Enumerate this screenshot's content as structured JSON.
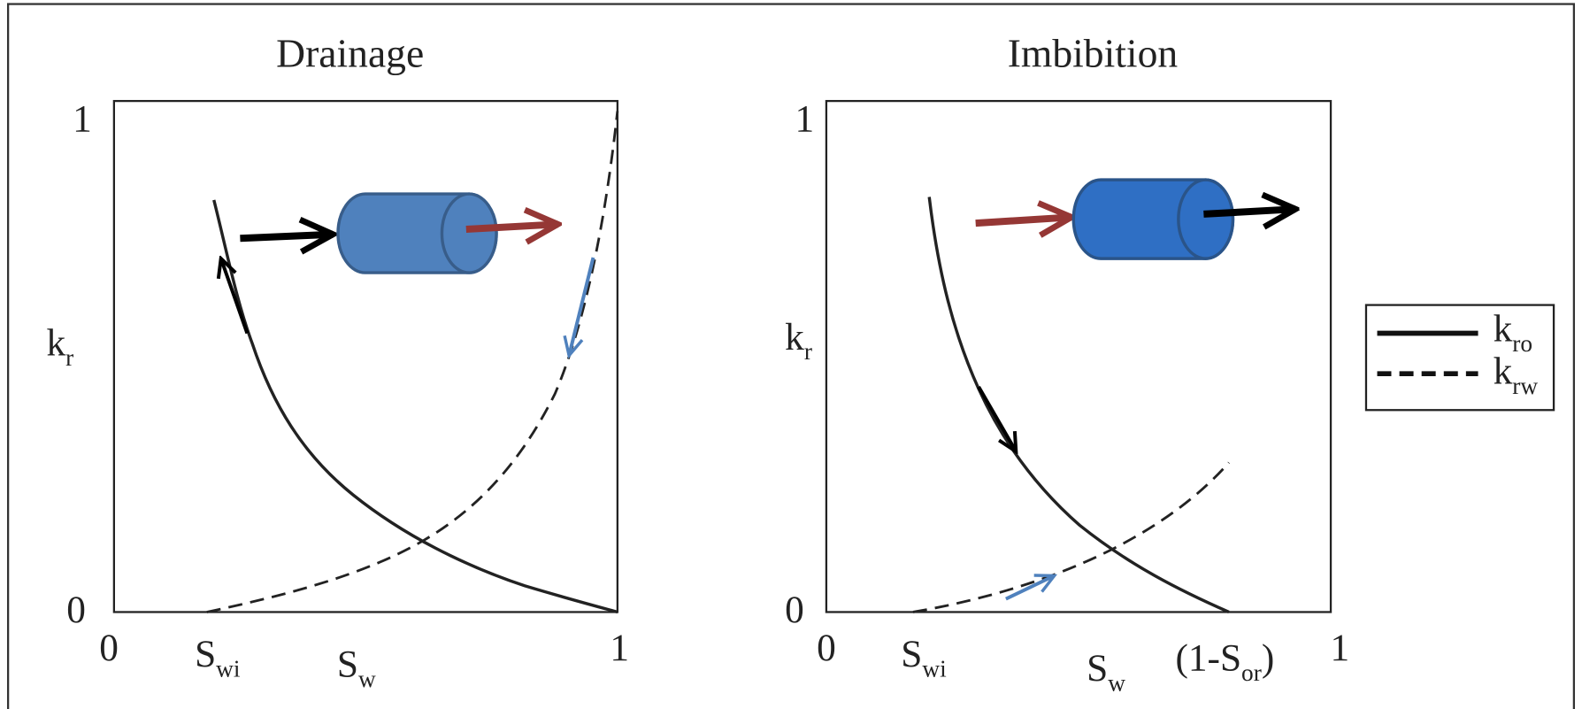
{
  "panels": [
    {
      "title": "Drainage",
      "y_label": {
        "main": "k",
        "sub": "r"
      },
      "y_ticks": [
        "1",
        "0"
      ],
      "x_ticks": [
        "0",
        "1"
      ],
      "x_labels": [
        {
          "main": "S",
          "sub": "wi"
        },
        {
          "main": "S",
          "sub": "w"
        }
      ]
    },
    {
      "title": "Imbibition",
      "y_label": {
        "main": "k",
        "sub": "r"
      },
      "y_ticks": [
        "1",
        "0"
      ],
      "x_ticks": [
        "0",
        "1"
      ],
      "x_labels": [
        {
          "main": "S",
          "sub": "wi"
        },
        {
          "main": "S",
          "sub": "w"
        },
        {
          "main": "(1-S",
          "sub": "or",
          "post": ")"
        }
      ]
    }
  ],
  "legend": {
    "items": [
      {
        "main": "k",
        "sub": "ro"
      },
      {
        "main": "k",
        "sub": "rw"
      }
    ]
  }
}
